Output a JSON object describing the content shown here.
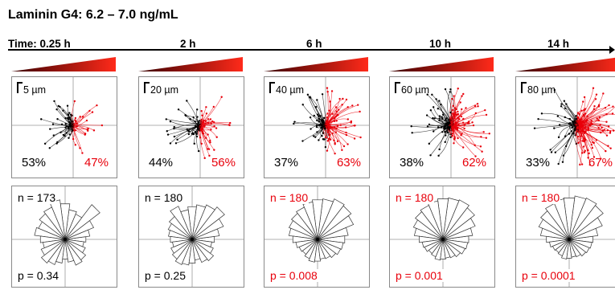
{
  "title": "Laminin G4: 6.2 – 7.0 ng/mL",
  "timeline": {
    "labels": [
      "Time: 0.25 h",
      "2 h",
      "6 h",
      "10 h",
      "14 h"
    ]
  },
  "colors": {
    "left": "#000000",
    "right": "#e8000b",
    "wedge_dark": "#3a0000",
    "wedge_bright": "#ff2a1a"
  },
  "panels": [
    {
      "scale": "5 µm",
      "left_pct": "53%",
      "right_pct": "47%",
      "n": "n = 173",
      "p": "p = 0.34",
      "significant": false,
      "rose": [
        0.42,
        0.5,
        0.62,
        0.88,
        0.55,
        0.6,
        0.72,
        0.8,
        0.7,
        0.65,
        0.58,
        0.62,
        0.5,
        0.45,
        0.52,
        0.6,
        0.55,
        0.48,
        0.4,
        0.46,
        0.56,
        0.52,
        0.44,
        0.38
      ]
    },
    {
      "scale": "20 µm",
      "left_pct": "44%",
      "right_pct": "56%",
      "n": "n = 180",
      "p": "p = 0.25",
      "significant": false,
      "rose": [
        0.45,
        0.55,
        0.68,
        0.82,
        0.75,
        0.7,
        0.66,
        0.6,
        0.72,
        0.58,
        0.52,
        0.48,
        0.44,
        0.4,
        0.46,
        0.5,
        0.55,
        0.52,
        0.48,
        0.42,
        0.5,
        0.54,
        0.46,
        0.4
      ]
    },
    {
      "scale": "40 µm",
      "left_pct": "37%",
      "right_pct": "63%",
      "n": "n = 180",
      "p": "p = 0.008",
      "significant": true,
      "rose": [
        0.55,
        0.62,
        0.78,
        0.85,
        0.88,
        0.82,
        0.8,
        0.76,
        0.7,
        0.66,
        0.62,
        0.58,
        0.5,
        0.44,
        0.4,
        0.38,
        0.42,
        0.46,
        0.44,
        0.4,
        0.42,
        0.46,
        0.5,
        0.52
      ]
    },
    {
      "scale": "60 µm",
      "left_pct": "38%",
      "right_pct": "62%",
      "n": "n = 180",
      "p": "p = 0.001",
      "significant": true,
      "rose": [
        0.52,
        0.6,
        0.7,
        0.8,
        0.86,
        0.84,
        0.82,
        0.78,
        0.74,
        0.7,
        0.64,
        0.58,
        0.48,
        0.42,
        0.4,
        0.36,
        0.38,
        0.42,
        0.4,
        0.38,
        0.4,
        0.44,
        0.48,
        0.5
      ]
    },
    {
      "scale": "80 µm",
      "left_pct": "33%",
      "right_pct": "67%",
      "n": "n = 180",
      "p": "p = 0.0001",
      "significant": true,
      "rose": [
        0.48,
        0.58,
        0.72,
        0.86,
        0.9,
        0.88,
        0.84,
        0.82,
        0.78,
        0.72,
        0.66,
        0.58,
        0.46,
        0.4,
        0.36,
        0.34,
        0.36,
        0.4,
        0.38,
        0.36,
        0.38,
        0.42,
        0.44,
        0.46
      ]
    }
  ]
}
